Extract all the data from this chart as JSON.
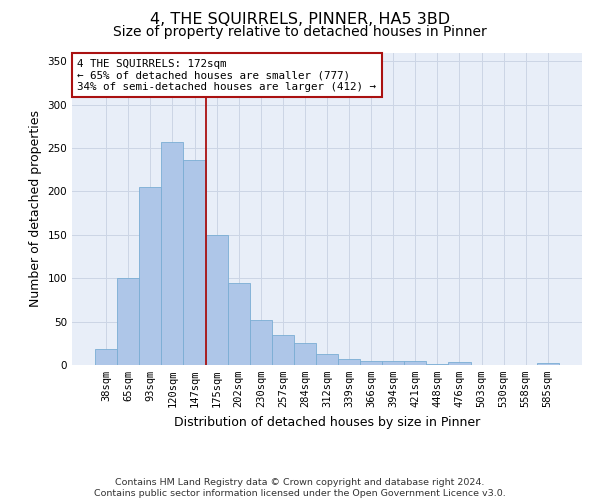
{
  "title": "4, THE SQUIRRELS, PINNER, HA5 3BD",
  "subtitle": "Size of property relative to detached houses in Pinner",
  "xlabel": "Distribution of detached houses by size in Pinner",
  "ylabel": "Number of detached properties",
  "categories": [
    "38sqm",
    "65sqm",
    "93sqm",
    "120sqm",
    "147sqm",
    "175sqm",
    "202sqm",
    "230sqm",
    "257sqm",
    "284sqm",
    "312sqm",
    "339sqm",
    "366sqm",
    "394sqm",
    "421sqm",
    "448sqm",
    "476sqm",
    "503sqm",
    "530sqm",
    "558sqm",
    "585sqm"
  ],
  "values": [
    18,
    100,
    205,
    257,
    236,
    150,
    95,
    52,
    35,
    25,
    13,
    7,
    5,
    5,
    5,
    1,
    3,
    0,
    0,
    0,
    2
  ],
  "bar_color": "#aec6e8",
  "bar_edge_color": "#7aadd4",
  "grid_color": "#ccd5e5",
  "background_color": "#e8eef8",
  "vline_x_idx": 5,
  "vline_color": "#aa1111",
  "annotation_line1": "4 THE SQUIRRELS: 172sqm",
  "annotation_line2": "← 65% of detached houses are smaller (777)",
  "annotation_line3": "34% of semi-detached houses are larger (412) →",
  "annotation_box_color": "#ffffff",
  "annotation_box_edge": "#aa1111",
  "ylim": [
    0,
    360
  ],
  "yticks": [
    0,
    50,
    100,
    150,
    200,
    250,
    300,
    350
  ],
  "footer": "Contains HM Land Registry data © Crown copyright and database right 2024.\nContains public sector information licensed under the Open Government Licence v3.0.",
  "title_fontsize": 11.5,
  "subtitle_fontsize": 10,
  "axis_label_fontsize": 9,
  "tick_fontsize": 7.5,
  "footer_fontsize": 6.8
}
